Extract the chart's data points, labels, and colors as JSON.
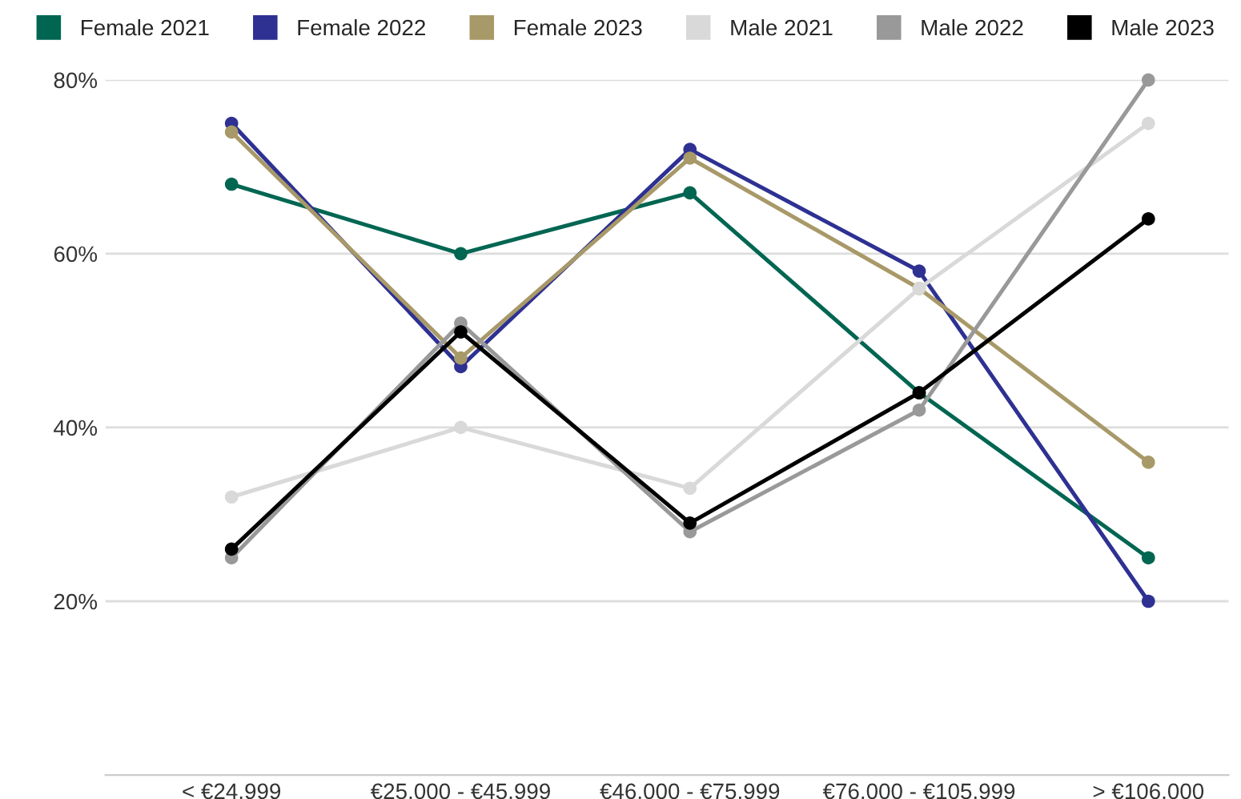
{
  "chart_data": {
    "type": "line",
    "categories": [
      "< €24.999",
      "€25.000 - €45.999",
      "€46.000 - €75.999",
      "€76.000 - €105.999",
      "> €106.000"
    ],
    "series": [
      {
        "name": "Female 2021",
        "color": "#006652",
        "values": [
          68,
          60,
          67,
          44,
          25
        ]
      },
      {
        "name": "Female 2022",
        "color": "#2e3192",
        "values": [
          75,
          47,
          72,
          58,
          20
        ]
      },
      {
        "name": "Female 2023",
        "color": "#a89968",
        "values": [
          74,
          48,
          71,
          56,
          36
        ]
      },
      {
        "name": "Male 2021",
        "color": "#d9d9d9",
        "values": [
          32,
          40,
          33,
          56,
          75
        ]
      },
      {
        "name": "Male 2022",
        "color": "#999999",
        "values": [
          25,
          52,
          28,
          42,
          80
        ]
      },
      {
        "name": "Male 2023",
        "color": "#000000",
        "values": [
          26,
          51,
          29,
          44,
          64
        ]
      }
    ],
    "ylim": [
      0,
      80
    ],
    "yticks": [
      {
        "value": 20,
        "label": "20%"
      },
      {
        "value": 40,
        "label": "40%"
      },
      {
        "value": 60,
        "label": "60%"
      },
      {
        "value": 80,
        "label": "80%"
      }
    ],
    "grid": "y",
    "legend": "top",
    "marker": "circle",
    "line_style": "solid"
  }
}
